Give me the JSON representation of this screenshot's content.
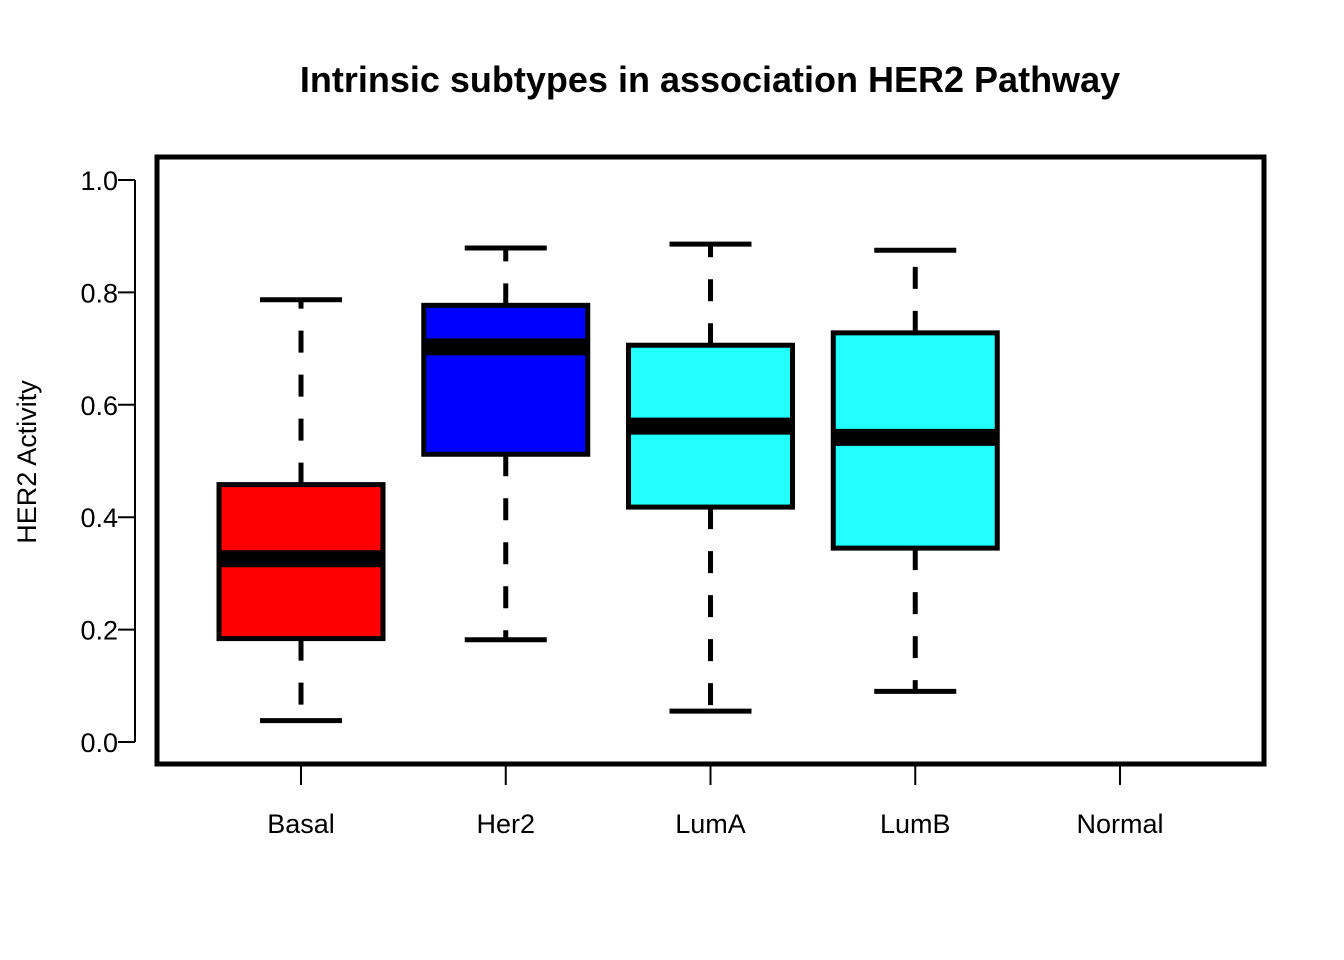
{
  "chart_data": {
    "type": "boxplot",
    "title": "Intrinsic subtypes in association HER2 Pathway",
    "xlabel": "",
    "ylabel": "HER2 Activity",
    "ylim": [
      0.0,
      1.0
    ],
    "yticks": [
      "0.0",
      "0.2",
      "0.4",
      "0.6",
      "0.8",
      "1.0"
    ],
    "categories": [
      "Basal",
      "Her2",
      "LumA",
      "LumB",
      "Normal"
    ],
    "grid": false,
    "legend": "none",
    "boxes": [
      {
        "category": "Basal",
        "whisker_low": 0.038,
        "q1": 0.184,
        "median": 0.326,
        "q3": 0.458,
        "whisker_high": 0.787,
        "color": "#ff0000"
      },
      {
        "category": "Her2",
        "whisker_low": 0.182,
        "q1": 0.512,
        "median": 0.703,
        "q3": 0.777,
        "whisker_high": 0.879,
        "color": "#0000ff"
      },
      {
        "category": "LumA",
        "whisker_low": 0.055,
        "q1": 0.418,
        "median": 0.562,
        "q3": 0.706,
        "whisker_high": 0.886,
        "color": "#22ffff"
      },
      {
        "category": "LumB",
        "whisker_low": 0.09,
        "q1": 0.345,
        "median": 0.542,
        "q3": 0.728,
        "whisker_high": 0.875,
        "color": "#22ffff"
      },
      {
        "category": "Normal",
        "whisker_low": null,
        "q1": null,
        "median": null,
        "q3": null,
        "whisker_high": null,
        "color": "#22ffff"
      }
    ]
  }
}
